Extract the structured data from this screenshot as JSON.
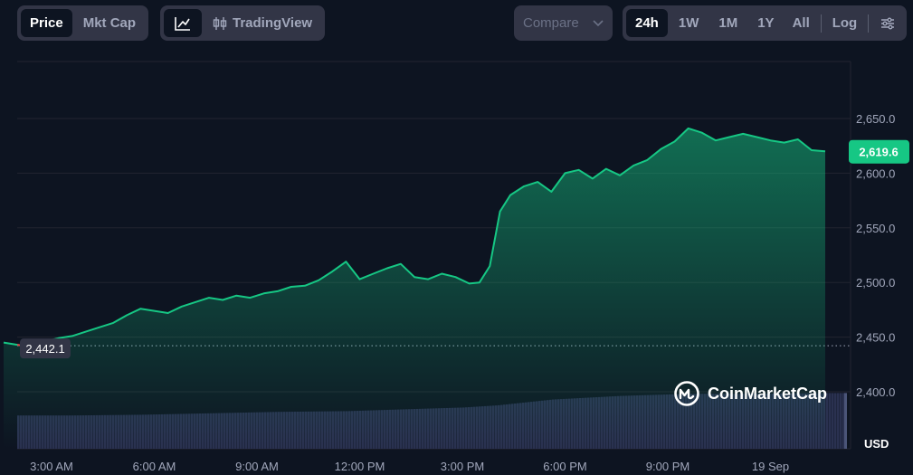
{
  "toolbar": {
    "metric_tabs": [
      {
        "label": "Price",
        "active": true
      },
      {
        "label": "Mkt Cap",
        "active": false
      }
    ],
    "chart_types": {
      "line_icon": "line-chart-icon",
      "tradingview_icon": "candlestick-icon",
      "tradingview_label": "TradingView"
    },
    "compare": {
      "label": "Compare",
      "icon": "chevron-down-icon"
    },
    "ranges": [
      {
        "label": "24h",
        "active": true
      },
      {
        "label": "1W",
        "active": false
      },
      {
        "label": "1M",
        "active": false
      },
      {
        "label": "1Y",
        "active": false
      },
      {
        "label": "All",
        "active": false
      }
    ],
    "log_label": "Log",
    "settings_icon": "sliders-icon"
  },
  "watermark": {
    "text": "CoinMarketCap",
    "icon": "coinmarketcap-logo-icon"
  },
  "colors": {
    "background": "#0d1421",
    "line": "#16c784",
    "down": "#ea3943",
    "volume": "#2a3150",
    "current_badge": "#16c784",
    "open_badge": "#323546"
  },
  "chart_data": {
    "type": "area",
    "title": "",
    "xlabel": "",
    "ylabel": "",
    "unit_label": "USD",
    "x_ticks": [
      "3:00 AM",
      "6:00 AM",
      "9:00 AM",
      "12:00 PM",
      "3:00 PM",
      "6:00 PM",
      "9:00 PM",
      "19 Sep"
    ],
    "y_ticks": [
      "2,400.0",
      "2,450.0",
      "2,500.0",
      "2,550.0",
      "2,600.0",
      "2,650.0"
    ],
    "ylim": [
      2380,
      2700
    ],
    "xlim": [
      1.6,
      25.6
    ],
    "open_price": 2442.1,
    "open_label": "2,442.1",
    "current_price": 2619.6,
    "current_label": "2,619.6",
    "series": [
      {
        "x": [
          1.6,
          2.0,
          2.4,
          2.8,
          3.2,
          3.6,
          4.0,
          4.4,
          4.8,
          5.2,
          5.6,
          6.0,
          6.4,
          6.8,
          7.2,
          7.6,
          8.0,
          8.4,
          8.8,
          9.2,
          9.6,
          10.0,
          10.4,
          10.8,
          11.2,
          11.6,
          12.0,
          12.4,
          12.8,
          13.2,
          13.6,
          14.0,
          14.4,
          14.8,
          15.2,
          15.5,
          15.8,
          16.1,
          16.4,
          16.8,
          17.2,
          17.6,
          18.0,
          18.4,
          18.8,
          19.2,
          19.6,
          20.0,
          20.4,
          20.8,
          21.2,
          21.6,
          22.0,
          22.4,
          22.8,
          23.2,
          23.6,
          24.0,
          24.4,
          24.8,
          25.2,
          25.6
        ],
        "values": [
          2445,
          2443,
          2441,
          2446,
          2449,
          2451,
          2455,
          2459,
          2463,
          2470,
          2476,
          2474,
          2472,
          2478,
          2482,
          2486,
          2484,
          2488,
          2486,
          2490,
          2492,
          2496,
          2497,
          2502,
          2510,
          2519,
          2503,
          2508,
          2513,
          2517,
          2505,
          2503,
          2508,
          2505,
          2499,
          2500,
          2515,
          2565,
          2580,
          2588,
          2592,
          2583,
          2600,
          2603,
          2595,
          2604,
          2598,
          2607,
          2612,
          2622,
          2629,
          2641,
          2637,
          2630,
          2633,
          2636,
          2633,
          2630,
          2628,
          2631,
          2621,
          2620
        ]
      }
    ],
    "volume": {
      "x": [
        1.6,
        3.6,
        5.6,
        7.6,
        9.6,
        11.6,
        13.6,
        15.0,
        16.0,
        17.6,
        19.6,
        21.6,
        23.6,
        25.6
      ],
      "values": [
        0.46,
        0.46,
        0.47,
        0.49,
        0.51,
        0.52,
        0.55,
        0.57,
        0.6,
        0.68,
        0.73,
        0.76,
        0.76,
        0.77
      ]
    },
    "grid": true,
    "legend": "none"
  }
}
